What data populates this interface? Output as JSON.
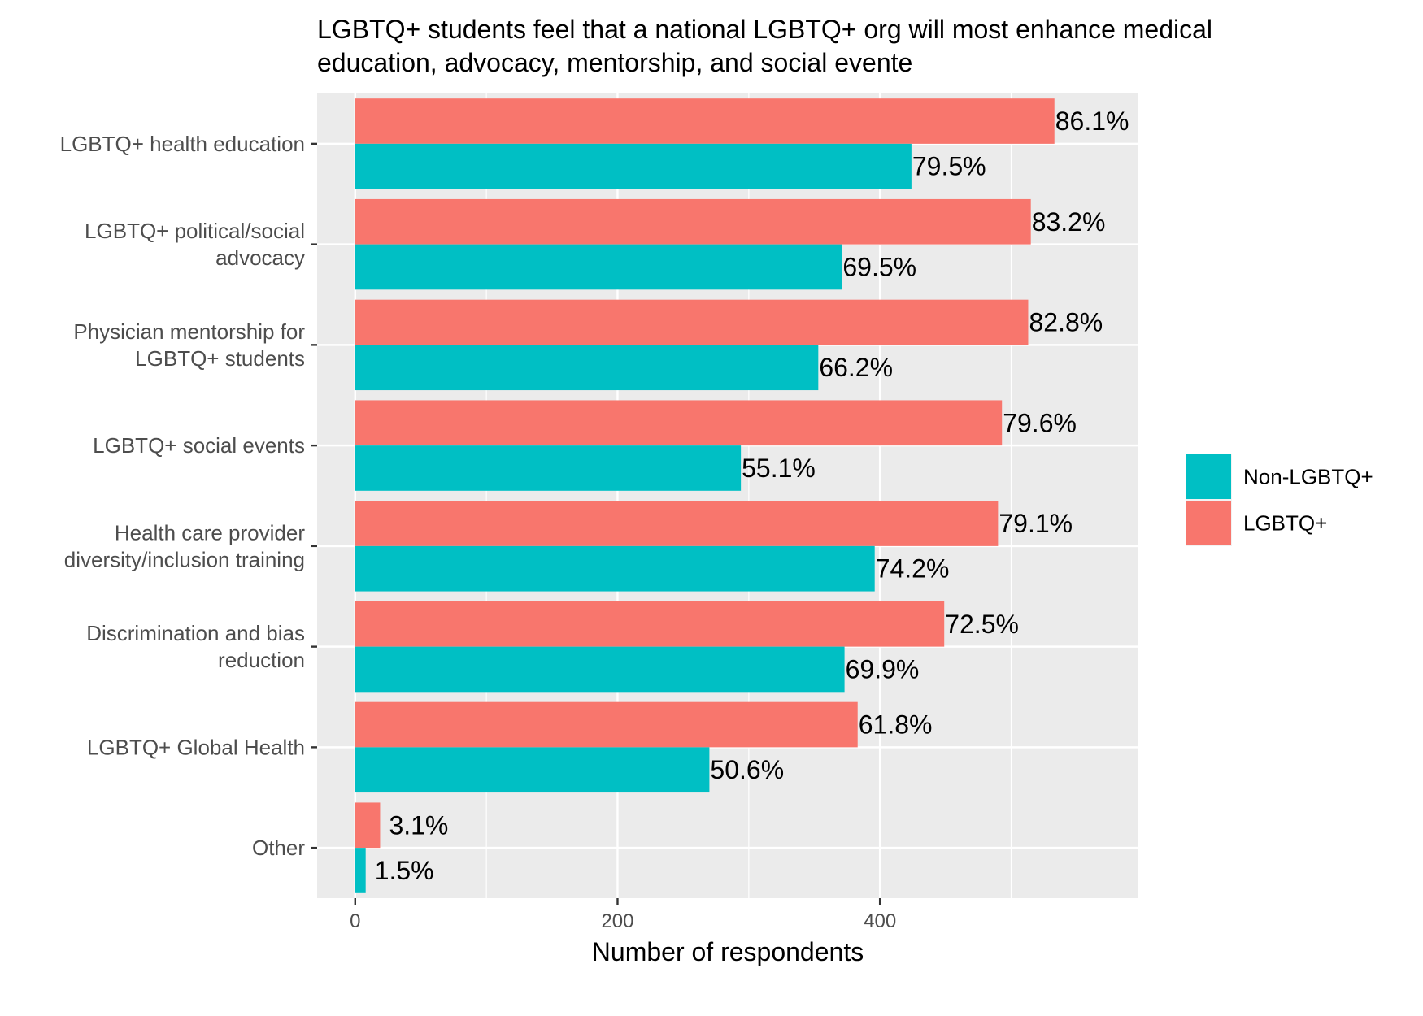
{
  "chart_data": {
    "type": "bar",
    "orientation": "horizontal",
    "title_lines": [
      "LGBTQ+ students feel that a national LGBTQ+ org will most enhance medical",
      "education, advocacy, mentorship, and social evente"
    ],
    "xlabel": "Number of respondents",
    "xlim": [
      -29,
      597
    ],
    "xticks": [
      0,
      200,
      400
    ],
    "grid": true,
    "legend_position": "right",
    "categories": [
      [
        "LGBTQ+ health education"
      ],
      [
        "LGBTQ+ political/social",
        "advocacy"
      ],
      [
        "Physician mentorship for",
        "LGBTQ+ students"
      ],
      [
        "LGBTQ+ social events"
      ],
      [
        "Health care provider",
        "diversity/inclusion training"
      ],
      [
        "Discrimination and bias",
        "reduction"
      ],
      [
        "LGBTQ+ Global Health"
      ],
      [
        "Other"
      ]
    ],
    "series": [
      {
        "name": "LGBTQ+",
        "color": "#F8766D",
        "values": [
          533,
          515,
          513,
          493,
          490,
          449,
          383,
          19
        ],
        "labels": [
          "86.1%",
          "83.2%",
          "82.8%",
          "79.6%",
          "79.1%",
          "72.5%",
          "61.8%",
          "3.1%"
        ]
      },
      {
        "name": "Non-LGBTQ+",
        "color": "#00BFC4",
        "values": [
          424,
          371,
          353,
          294,
          396,
          373,
          270,
          8
        ],
        "labels": [
          "79.5%",
          "69.5%",
          "66.2%",
          "55.1%",
          "74.2%",
          "69.9%",
          "50.6%",
          "1.5%"
        ]
      }
    ],
    "legend_order": [
      "Non-LGBTQ+",
      "LGBTQ+"
    ]
  }
}
